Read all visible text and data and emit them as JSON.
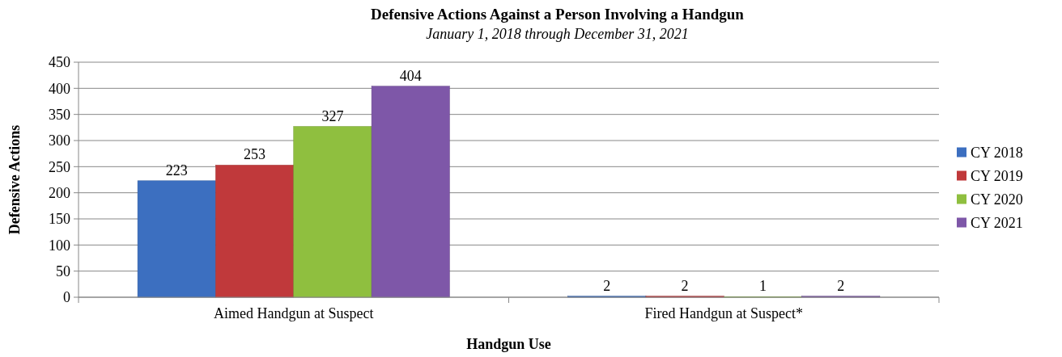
{
  "chart_data": {
    "type": "bar",
    "title": "Defensive Actions Against a Person Involving a Handgun",
    "subtitle": "January 1, 2018 through December 31, 2021",
    "xlabel": "Handgun Use",
    "ylabel": "Defensive Actions",
    "categories": [
      "Aimed Handgun at Suspect",
      "Fired Handgun at Suspect*"
    ],
    "series": [
      {
        "name": "CY 2018",
        "color": "#3c6fc0",
        "values": [
          223,
          2
        ]
      },
      {
        "name": "CY 2019",
        "color": "#c0393b",
        "values": [
          253,
          2
        ]
      },
      {
        "name": "CY 2020",
        "color": "#8fbf3f",
        "values": [
          327,
          1
        ]
      },
      {
        "name": "CY 2021",
        "color": "#7e57a8",
        "values": [
          404,
          2
        ]
      }
    ],
    "ylim": [
      0,
      450
    ],
    "yticks": [
      0,
      50,
      100,
      150,
      200,
      250,
      300,
      350,
      400,
      450
    ],
    "grid": "y",
    "legend": "right",
    "data_labels": true
  }
}
